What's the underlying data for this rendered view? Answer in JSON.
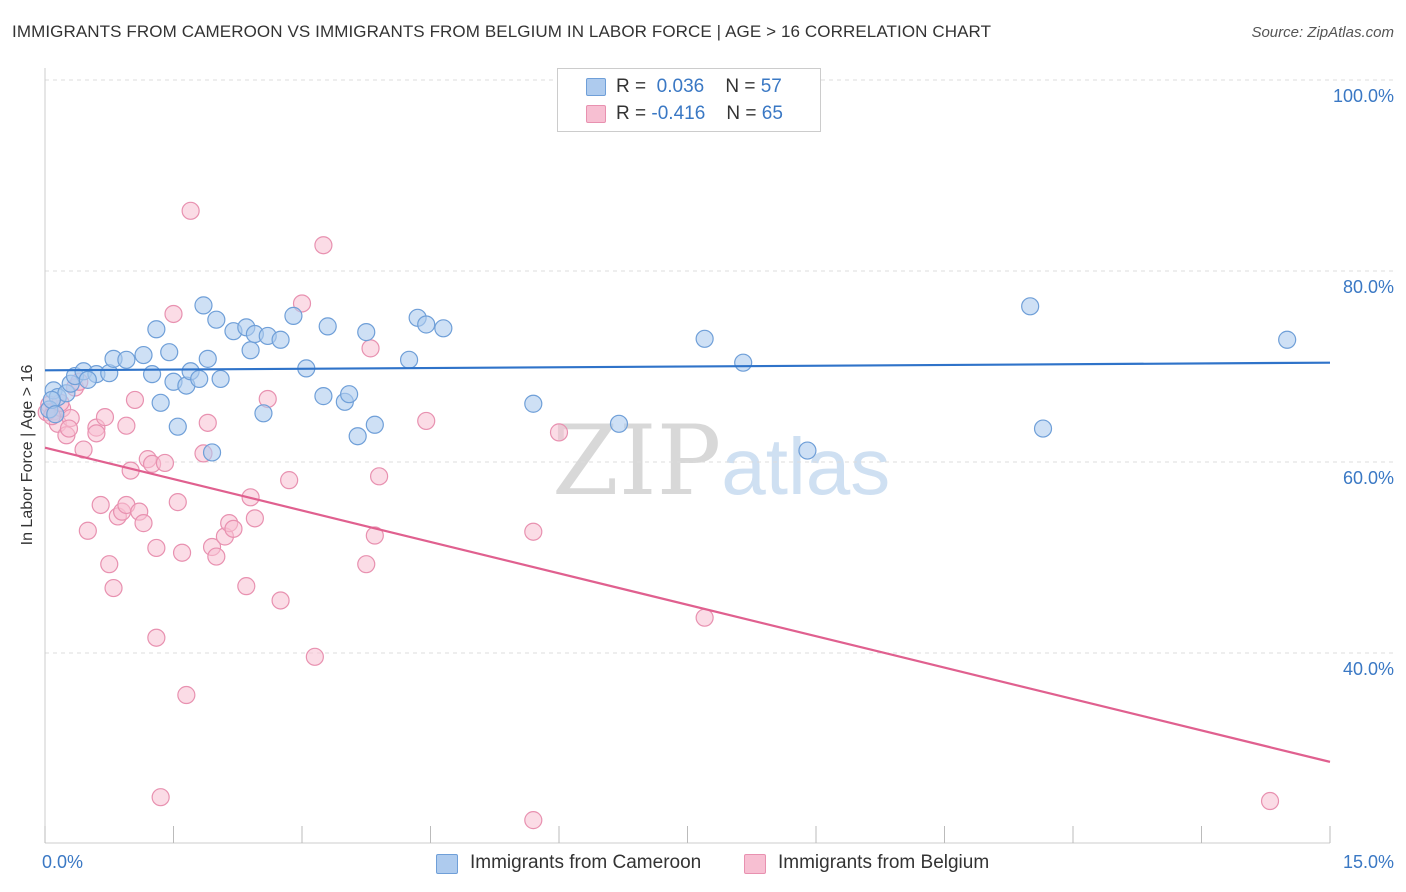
{
  "title": "IMMIGRANTS FROM CAMEROON VS IMMIGRANTS FROM BELGIUM IN LABOR FORCE | AGE > 16 CORRELATION CHART",
  "source": "Source: ZipAtlas.com",
  "watermark": {
    "zip": "ZIP",
    "atlas": "atlas"
  },
  "colors": {
    "blue_fill": "#aecbee",
    "blue_stroke": "#6f9fd8",
    "blue_line": "#2f73c9",
    "pink_fill": "#f7bfd2",
    "pink_stroke": "#e891b0",
    "pink_line": "#e0608f",
    "grid": "#dddddd",
    "tick_text": "#3a78c4"
  },
  "legend": {
    "rows": [
      {
        "r_label": "R =",
        "r_value": "0.036",
        "n_label": "N =",
        "n_value": "57"
      },
      {
        "r_label": "R =",
        "r_value": "-0.416",
        "n_label": "N =",
        "n_value": "65"
      }
    ]
  },
  "chart_data": {
    "type": "scatter",
    "title": "IMMIGRANTS FROM CAMEROON VS IMMIGRANTS FROM BELGIUM IN LABOR FORCE | AGE > 16 CORRELATION CHART",
    "xlabel": "",
    "ylabel": "In Labor Force | Age > 16",
    "xlim": [
      0,
      15
    ],
    "ylim": [
      20,
      102
    ],
    "x_tick_labels": [
      "0.0%",
      "15.0%"
    ],
    "y_ticks": [
      40,
      60,
      80,
      100
    ],
    "y_tick_labels": [
      "40.0%",
      "60.0%",
      "80.0%",
      "100.0%"
    ],
    "grid": true,
    "series": [
      {
        "name": "Immigrants from Cameroon",
        "color": "blue",
        "r": 0.036,
        "n": 57,
        "trend": {
          "x": [
            0,
            15
          ],
          "y": [
            69.6,
            70.4
          ]
        },
        "points": [
          [
            0.1,
            67.5
          ],
          [
            0.15,
            66.8
          ],
          [
            0.25,
            67.2
          ],
          [
            0.3,
            68.2
          ],
          [
            0.35,
            69.0
          ],
          [
            0.45,
            69.5
          ],
          [
            0.6,
            69.2
          ],
          [
            0.5,
            68.6
          ],
          [
            0.75,
            69.3
          ],
          [
            0.8,
            70.8
          ],
          [
            0.95,
            70.7
          ],
          [
            1.15,
            71.2
          ],
          [
            1.25,
            69.2
          ],
          [
            1.3,
            73.9
          ],
          [
            1.35,
            66.2
          ],
          [
            1.45,
            71.5
          ],
          [
            1.5,
            68.4
          ],
          [
            1.55,
            63.7
          ],
          [
            1.65,
            68.0
          ],
          [
            1.7,
            69.5
          ],
          [
            1.8,
            68.7
          ],
          [
            1.85,
            76.4
          ],
          [
            1.9,
            70.8
          ],
          [
            1.95,
            61.0
          ],
          [
            2.0,
            74.9
          ],
          [
            2.05,
            68.7
          ],
          [
            2.2,
            73.7
          ],
          [
            2.35,
            74.1
          ],
          [
            2.4,
            71.7
          ],
          [
            2.45,
            73.4
          ],
          [
            2.55,
            65.1
          ],
          [
            2.6,
            73.2
          ],
          [
            2.75,
            72.8
          ],
          [
            2.9,
            75.3
          ],
          [
            3.05,
            69.8
          ],
          [
            3.25,
            66.9
          ],
          [
            3.3,
            74.2
          ],
          [
            3.5,
            66.3
          ],
          [
            3.55,
            67.1
          ],
          [
            3.65,
            62.7
          ],
          [
            3.75,
            73.6
          ],
          [
            3.85,
            63.9
          ],
          [
            4.25,
            70.7
          ],
          [
            4.35,
            75.1
          ],
          [
            4.45,
            74.4
          ],
          [
            4.65,
            74.0
          ],
          [
            5.7,
            66.1
          ],
          [
            6.7,
            64.0
          ],
          [
            7.7,
            72.9
          ],
          [
            8.15,
            70.4
          ],
          [
            8.9,
            61.2
          ],
          [
            11.5,
            76.3
          ],
          [
            11.65,
            63.5
          ],
          [
            14.5,
            72.8
          ],
          [
            0.05,
            65.5
          ],
          [
            0.08,
            66.5
          ],
          [
            0.12,
            65.0
          ]
        ]
      },
      {
        "name": "Immigrants from Belgium",
        "color": "pink",
        "r": -0.416,
        "n": 65,
        "trend": {
          "x": [
            0,
            15
          ],
          "y": [
            61.5,
            28.6
          ]
        },
        "points": [
          [
            0.05,
            66.0
          ],
          [
            0.1,
            65.3
          ],
          [
            0.15,
            64.0
          ],
          [
            0.2,
            65.6
          ],
          [
            0.25,
            62.8
          ],
          [
            0.3,
            64.6
          ],
          [
            0.35,
            67.8
          ],
          [
            0.4,
            68.4
          ],
          [
            0.45,
            61.3
          ],
          [
            0.5,
            52.8
          ],
          [
            0.6,
            63.6
          ],
          [
            0.6,
            63.0
          ],
          [
            0.65,
            55.5
          ],
          [
            0.7,
            64.7
          ],
          [
            0.75,
            49.3
          ],
          [
            0.8,
            46.8
          ],
          [
            0.85,
            54.3
          ],
          [
            0.9,
            54.8
          ],
          [
            0.95,
            63.8
          ],
          [
            0.95,
            55.5
          ],
          [
            1.0,
            59.1
          ],
          [
            1.05,
            66.5
          ],
          [
            1.1,
            54.8
          ],
          [
            1.15,
            53.6
          ],
          [
            1.2,
            60.3
          ],
          [
            1.25,
            59.8
          ],
          [
            1.3,
            41.6
          ],
          [
            1.3,
            51.0
          ],
          [
            1.35,
            24.9
          ],
          [
            1.4,
            59.9
          ],
          [
            1.5,
            75.5
          ],
          [
            1.55,
            55.8
          ],
          [
            1.6,
            50.5
          ],
          [
            1.65,
            35.6
          ],
          [
            1.7,
            86.3
          ],
          [
            1.85,
            60.9
          ],
          [
            1.9,
            64.1
          ],
          [
            1.95,
            51.1
          ],
          [
            2.0,
            50.1
          ],
          [
            2.1,
            52.2
          ],
          [
            2.15,
            53.6
          ],
          [
            2.2,
            53.0
          ],
          [
            2.35,
            47.0
          ],
          [
            2.4,
            56.3
          ],
          [
            2.45,
            54.1
          ],
          [
            2.6,
            66.6
          ],
          [
            2.75,
            45.5
          ],
          [
            2.85,
            58.1
          ],
          [
            3.0,
            76.6
          ],
          [
            3.15,
            39.6
          ],
          [
            3.25,
            82.7
          ],
          [
            3.75,
            49.3
          ],
          [
            3.8,
            71.9
          ],
          [
            3.85,
            52.3
          ],
          [
            3.9,
            58.5
          ],
          [
            4.45,
            64.3
          ],
          [
            5.7,
            22.5
          ],
          [
            5.7,
            52.7
          ],
          [
            6.0,
            63.1
          ],
          [
            7.7,
            43.7
          ],
          [
            14.3,
            24.5
          ],
          [
            0.02,
            65.2
          ],
          [
            0.08,
            64.8
          ],
          [
            0.18,
            66.2
          ],
          [
            0.28,
            63.5
          ]
        ]
      }
    ]
  }
}
